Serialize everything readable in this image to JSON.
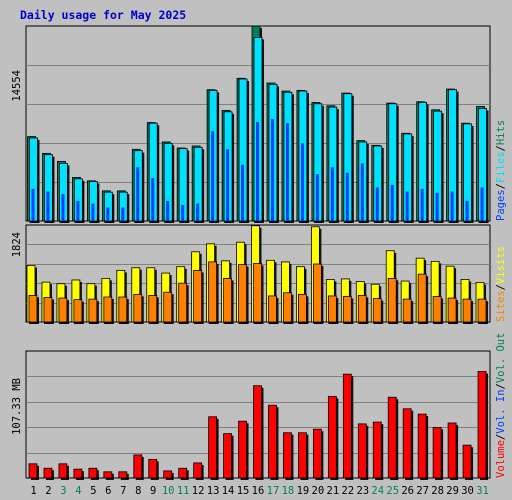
{
  "chart_data": [
    {
      "type": "bar",
      "title": "Daily usage for May 2025",
      "y_tick_label": "14554",
      "ylim": [
        0,
        14554
      ],
      "categories": [
        "1",
        "2",
        "3",
        "4",
        "5",
        "6",
        "7",
        "8",
        "9",
        "10",
        "11",
        "12",
        "13",
        "14",
        "15",
        "16",
        "17",
        "18",
        "19",
        "20",
        "21",
        "22",
        "23",
        "24",
        "25",
        "26",
        "27",
        "28",
        "29",
        "30",
        "31"
      ],
      "weekend_categories": [
        "3",
        "4",
        "10",
        "11",
        "17",
        "18",
        "24",
        "25",
        "31"
      ],
      "series": [
        {
          "name": "Hits",
          "color": "#00805c",
          "values": [
            6300,
            5050,
            4450,
            3250,
            3000,
            2250,
            2250,
            5350,
            7350,
            5900,
            5450,
            5600,
            9800,
            8250,
            10650,
            14550,
            10300,
            9700,
            9750,
            8850,
            8600,
            9550,
            6000,
            5650,
            8800,
            6550,
            8900,
            8300,
            9850,
            7300,
            8550
          ]
        },
        {
          "name": "Files",
          "color": "#00e0ff",
          "values": [
            6200,
            4950,
            4300,
            3150,
            2950,
            2150,
            2150,
            5250,
            7300,
            5800,
            5400,
            5500,
            9750,
            8150,
            10600,
            13700,
            10200,
            9600,
            9700,
            8750,
            8500,
            9500,
            5900,
            5600,
            8750,
            6500,
            8850,
            8200,
            9800,
            7250,
            8400
          ]
        },
        {
          "name": "Pages",
          "color": "#0040ff",
          "values": [
            2400,
            2200,
            2000,
            1500,
            1300,
            1000,
            1000,
            4000,
            3200,
            1500,
            1200,
            1300,
            6700,
            5350,
            4200,
            7400,
            7600,
            7300,
            5800,
            3500,
            4000,
            3600,
            4300,
            2500,
            2700,
            2200,
            2400,
            2100,
            2200,
            1500,
            2500
          ]
        }
      ]
    },
    {
      "type": "bar",
      "y_tick_label": "1824",
      "ylim": [
        0,
        1824
      ],
      "series": [
        {
          "name": "Visits",
          "color": "#ffff00",
          "values": [
            1060,
            750,
            720,
            790,
            720,
            820,
            970,
            1020,
            1020,
            920,
            1040,
            1320,
            1470,
            1150,
            1500,
            1810,
            1160,
            1130,
            1040,
            1790,
            800,
            810,
            760,
            710,
            1340,
            770,
            1200,
            1140,
            1050,
            800,
            740
          ]
        },
        {
          "name": "Sites",
          "color": "#ff8000",
          "values": [
            500,
            460,
            450,
            420,
            430,
            470,
            470,
            520,
            500,
            560,
            730,
            970,
            1130,
            820,
            1080,
            1100,
            490,
            550,
            520,
            1090,
            490,
            480,
            500,
            440,
            820,
            430,
            900,
            480,
            450,
            430,
            430
          ]
        }
      ]
    },
    {
      "type": "bar",
      "y_tick_label": "107.33 MB",
      "ylim": [
        0,
        143.1
      ],
      "series": [
        {
          "name": "Volume",
          "color": "#ff0000",
          "values": [
            16,
            11,
            16,
            10,
            11,
            7,
            7,
            26,
            21,
            8,
            11,
            17,
            69,
            50,
            64,
            104,
            82,
            51,
            51,
            55,
            92,
            117,
            61,
            63,
            91,
            78,
            72,
            57,
            62,
            37,
            120
          ]
        },
        {
          "name": "Vol. In",
          "color": "#0040ff",
          "values": []
        },
        {
          "name": "Vol. Out",
          "color": "#00805c",
          "values": []
        }
      ]
    }
  ],
  "legend_separator": "/",
  "legend_separator_color": "#000000"
}
